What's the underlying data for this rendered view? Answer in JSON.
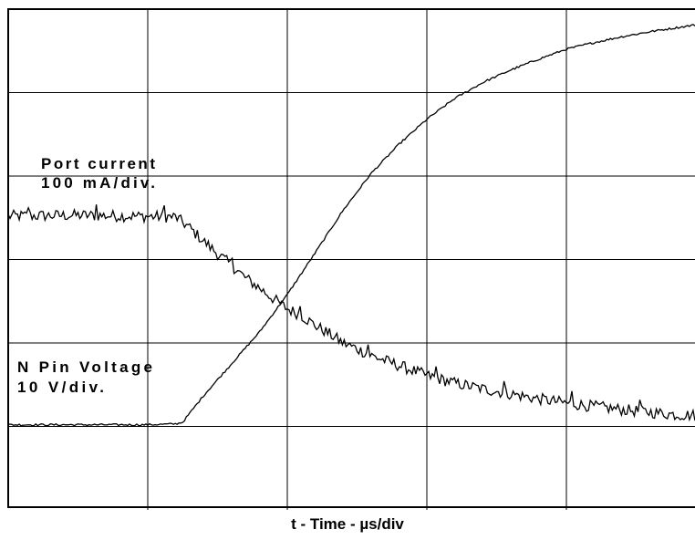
{
  "chart_data": {
    "type": "line",
    "title": "",
    "xlabel": "t - Time - µs/div",
    "ylabel": "",
    "grid": true,
    "x_divisions": 5,
    "y_divisions": 6,
    "xlim": [
      0,
      5
    ],
    "ylim": [
      0,
      6
    ],
    "series": [
      {
        "name": "Port current",
        "unit_label": "100 mA/div.",
        "x": [
          0,
          0.5,
          0.9,
          1.2,
          1.3,
          1.4,
          1.5,
          1.6,
          1.7,
          1.8,
          1.9,
          2.0,
          2.1,
          2.2,
          2.3,
          2.4,
          2.5,
          2.6,
          2.8,
          3.0,
          3.2,
          3.4,
          3.6,
          3.8,
          4.0,
          4.2,
          4.4,
          4.6,
          4.8,
          5.0
        ],
        "values": [
          3.52,
          3.53,
          3.52,
          3.51,
          3.38,
          3.22,
          3.07,
          2.93,
          2.78,
          2.66,
          2.53,
          2.41,
          2.33,
          2.21,
          2.11,
          2.0,
          1.93,
          1.85,
          1.73,
          1.61,
          1.52,
          1.45,
          1.39,
          1.33,
          1.28,
          1.24,
          1.2,
          1.17,
          1.14,
          1.13
        ]
      },
      {
        "name": "N Pin Voltage",
        "unit_label": "10 V/div.",
        "x": [
          0,
          0.5,
          1.0,
          1.2,
          1.25,
          1.4,
          1.6,
          1.8,
          2.0,
          2.2,
          2.4,
          2.6,
          2.8,
          3.0,
          3.2,
          3.4,
          3.6,
          3.8,
          4.0,
          4.2,
          4.4,
          4.6,
          4.8,
          5.0
        ],
        "values": [
          1.02,
          1.02,
          1.02,
          1.03,
          1.05,
          1.37,
          1.75,
          2.13,
          2.58,
          3.08,
          3.59,
          4.03,
          4.38,
          4.68,
          4.93,
          5.12,
          5.27,
          5.4,
          5.52,
          5.6,
          5.67,
          5.73,
          5.78,
          5.83
        ]
      }
    ],
    "annotations": [
      {
        "line1": "Port current",
        "line2": "100 mA/div."
      },
      {
        "line1": "N Pin Voltage",
        "line2": "10 V/div."
      }
    ]
  }
}
